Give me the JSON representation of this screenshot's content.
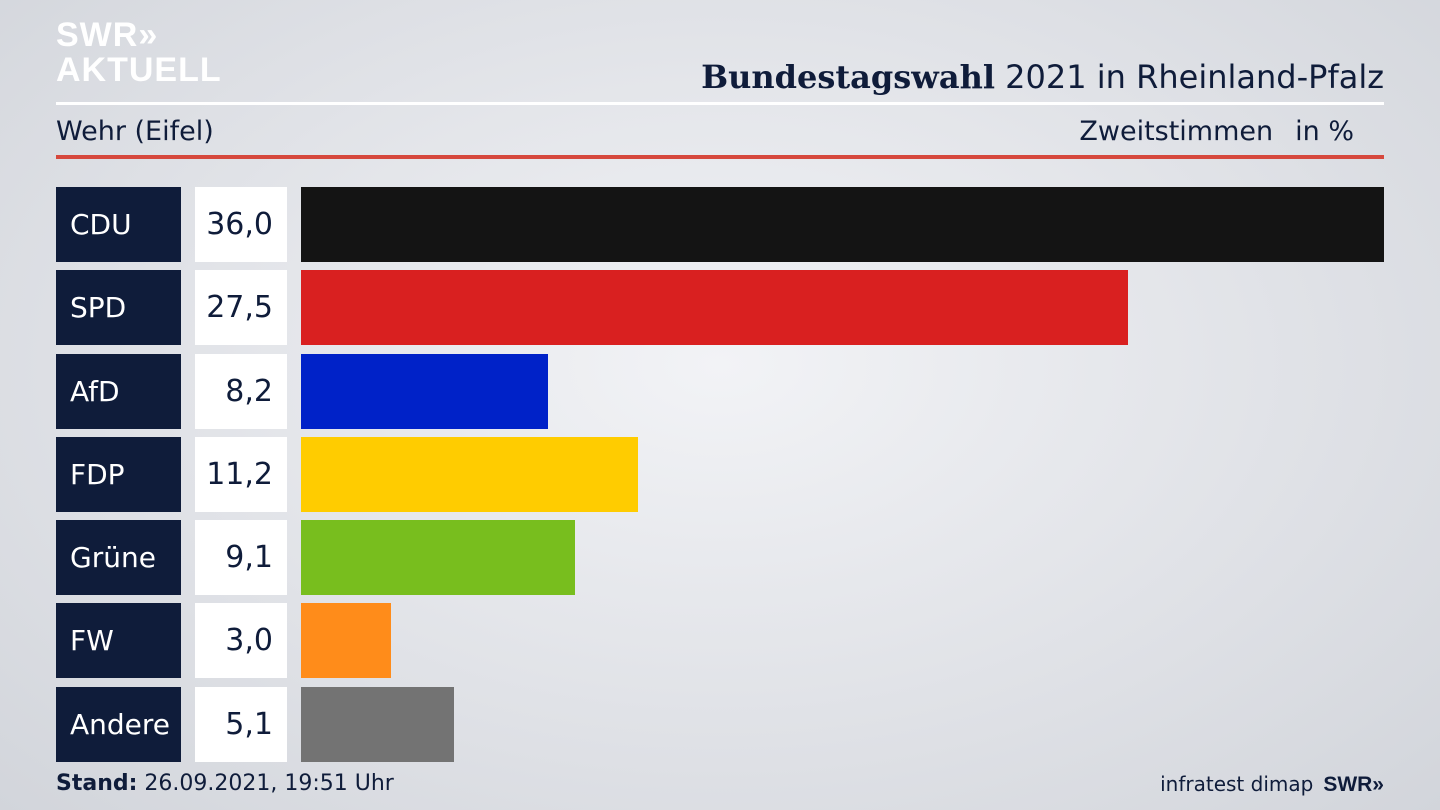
{
  "logo": {
    "line1": "SWR»",
    "line2": "AKTUELL"
  },
  "header": {
    "title_bold": "Bundestagswahl",
    "title_rest": " 2021 in Rheinland-Pfalz",
    "subtitle": "Wehr (Eifel)",
    "measure": "Zweitstimmen",
    "unit": "in %"
  },
  "footer": {
    "stand_label": "Stand:",
    "stand_value": " 26.09.2021, 19:51 Uhr",
    "source": "infratest dimap",
    "brand": "SWR»"
  },
  "colors": {
    "accent_red_rule": "#d6483d",
    "party_box": "#0f1c3a"
  },
  "chart_data": {
    "type": "bar",
    "orientation": "horizontal",
    "title": "Bundestagswahl 2021 in Rheinland-Pfalz",
    "subtitle": "Wehr (Eifel)",
    "ylabel": "Zweitstimmen in %",
    "categories": [
      "CDU",
      "SPD",
      "AfD",
      "FDP",
      "Grüne",
      "FW",
      "Andere"
    ],
    "values": [
      36.0,
      27.5,
      8.2,
      11.2,
      9.1,
      3.0,
      5.1
    ],
    "value_labels": [
      "36,0",
      "27,5",
      "8,2",
      "11,2",
      "9,1",
      "3,0",
      "5,1"
    ],
    "colors": [
      "#141414",
      "#d92020",
      "#0022c8",
      "#ffcc00",
      "#78be1e",
      "#ff8c1a",
      "#737373"
    ]
  }
}
